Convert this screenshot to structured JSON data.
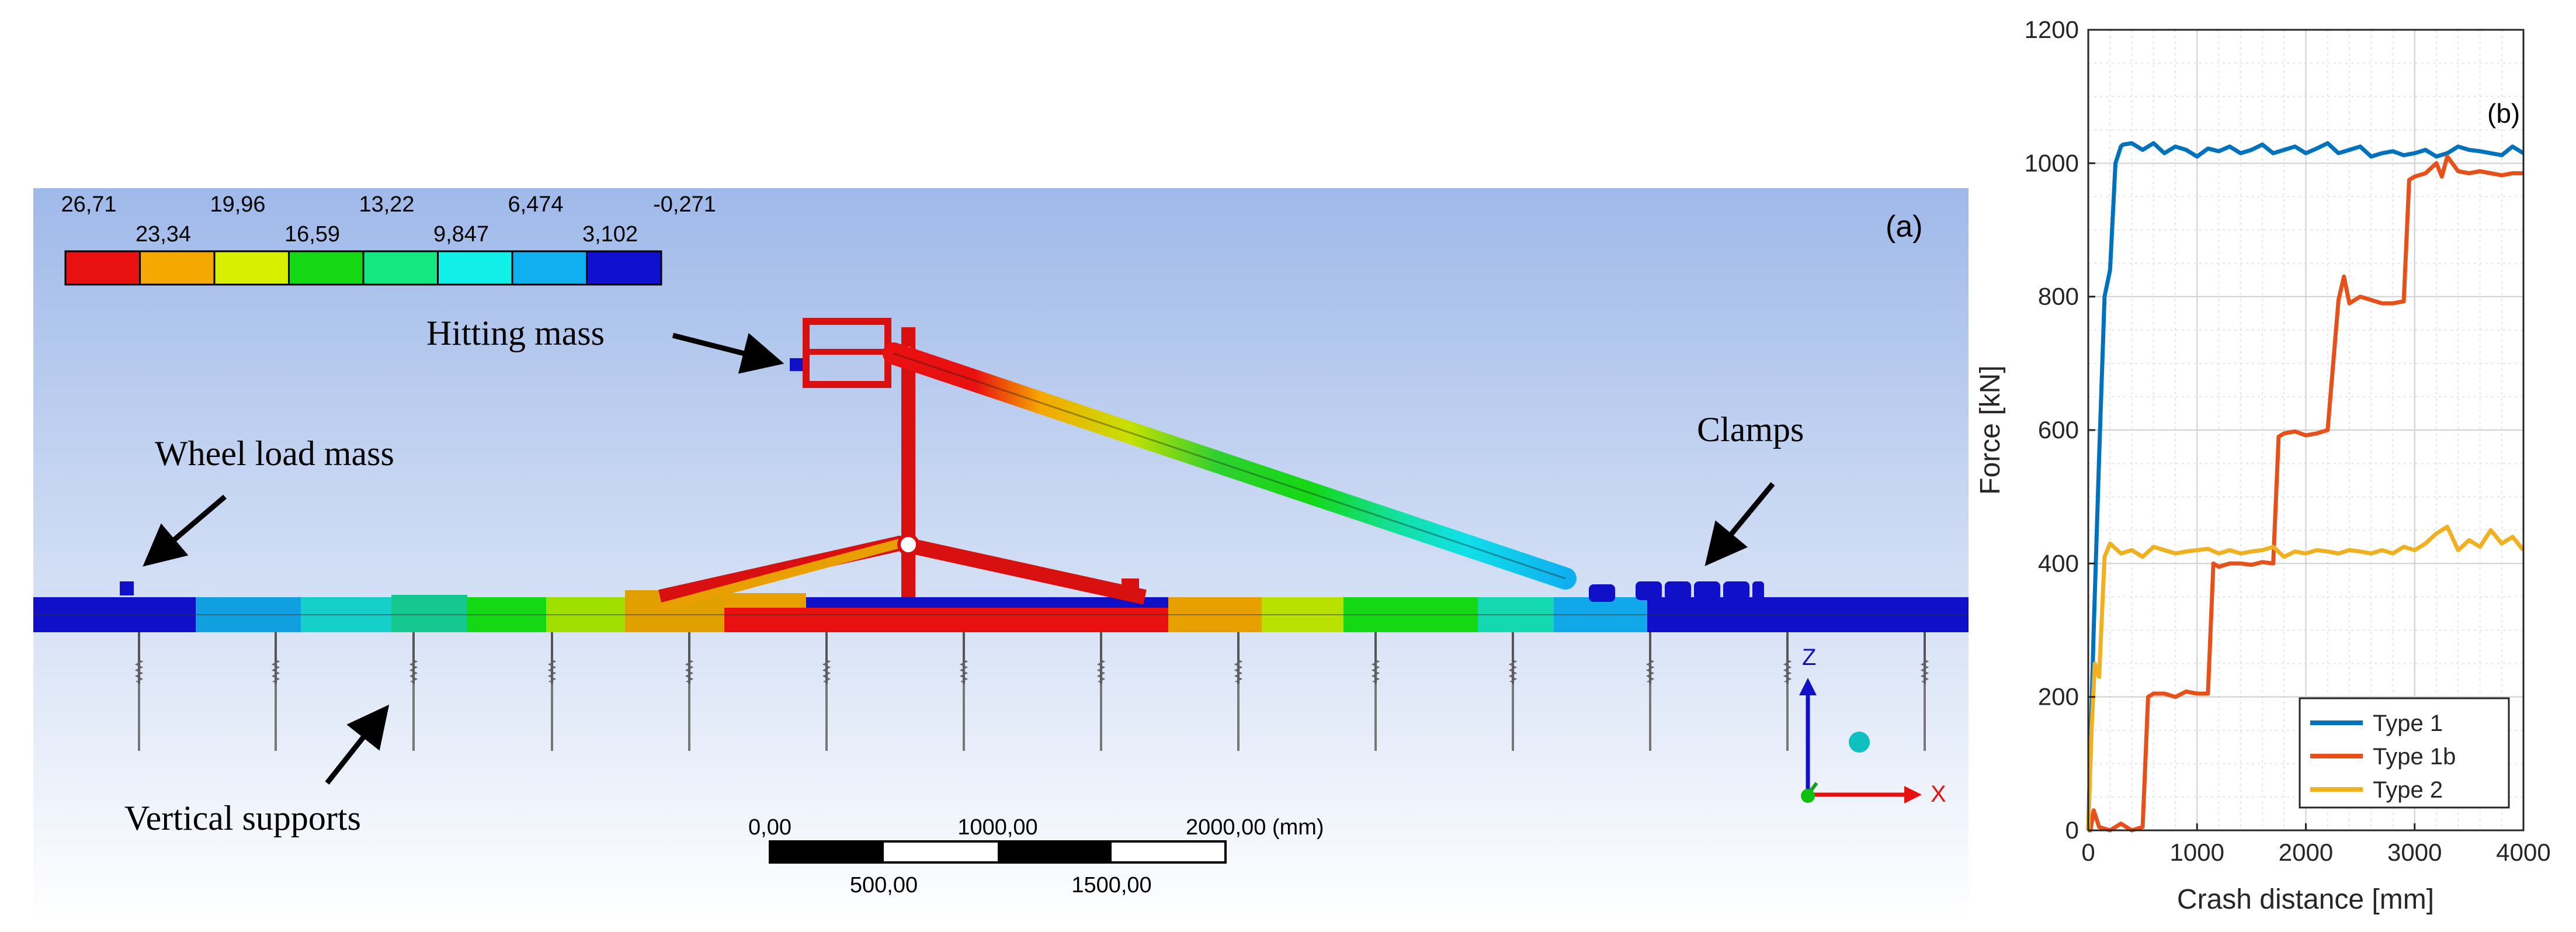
{
  "panel_a": {
    "panel_label": "(a)",
    "legend_values_top": [
      "26,71",
      "19,96",
      "13,22",
      "6,474",
      "-0,271"
    ],
    "legend_values_bottom": [
      "23,34",
      "16,59",
      "9,847",
      "3,102"
    ],
    "legend_colors": [
      "#e81010",
      "#f5a800",
      "#d8f000",
      "#14d814",
      "#14e880",
      "#10f0e8",
      "#10b0f0",
      "#1010d0"
    ],
    "annotations": {
      "hitting_mass": "Hitting mass",
      "wheel_load_mass": "Wheel load mass",
      "clamps": "Clamps",
      "vertical_supports": "Vertical supports"
    },
    "scale_bar": {
      "top_labels": [
        "0,00",
        "1000,00",
        "2000,00 (mm)"
      ],
      "bottom_labels": [
        "500,00",
        "1500,00"
      ]
    },
    "triad": {
      "z_label": "Z",
      "x_label": "X"
    }
  },
  "chart_data": {
    "type": "line",
    "panel_label": "(b)",
    "xlabel": "Crash distance [mm]",
    "ylabel": "Force [kN]",
    "xlim": [
      0,
      4000
    ],
    "ylim": [
      0,
      1200
    ],
    "xticks": [
      0,
      1000,
      2000,
      3000,
      4000
    ],
    "yticks": [
      0,
      200,
      400,
      600,
      800,
      1000,
      1200
    ],
    "grid": true,
    "legend_position": "bottom-right",
    "series": [
      {
        "name": "Type 1",
        "color": "#0072bd",
        "x": [
          0,
          50,
          100,
          150,
          200,
          250,
          300,
          320,
          400,
          500,
          600,
          700,
          800,
          900,
          1000,
          1100,
          1200,
          1300,
          1400,
          1500,
          1600,
          1700,
          1800,
          1900,
          2000,
          2100,
          2200,
          2300,
          2400,
          2500,
          2600,
          2700,
          2800,
          2900,
          3000,
          3100,
          3200,
          3300,
          3400,
          3500,
          3600,
          3700,
          3800,
          3900,
          4000
        ],
        "y": [
          0,
          300,
          560,
          800,
          840,
          1000,
          1025,
          1028,
          1030,
          1020,
          1030,
          1015,
          1025,
          1020,
          1010,
          1022,
          1018,
          1025,
          1015,
          1020,
          1028,
          1015,
          1020,
          1025,
          1015,
          1022,
          1030,
          1015,
          1020,
          1025,
          1010,
          1015,
          1018,
          1012,
          1015,
          1020,
          1010,
          1015,
          1025,
          1020,
          1018,
          1015,
          1012,
          1025,
          1015
        ]
      },
      {
        "name": "Type 1b",
        "color": "#e8501a",
        "x": [
          0,
          20,
          50,
          100,
          200,
          300,
          400,
          500,
          550,
          600,
          700,
          800,
          900,
          1000,
          1100,
          1150,
          1200,
          1300,
          1400,
          1500,
          1600,
          1700,
          1750,
          1800,
          1900,
          2000,
          2100,
          2200,
          2300,
          2350,
          2400,
          2500,
          2600,
          2700,
          2800,
          2900,
          2950,
          3000,
          3100,
          3200,
          3250,
          3300,
          3400,
          3500,
          3600,
          3700,
          3800,
          3900,
          4000
        ],
        "y": [
          0,
          0,
          30,
          5,
          0,
          10,
          0,
          5,
          200,
          205,
          205,
          200,
          208,
          205,
          205,
          400,
          395,
          400,
          400,
          398,
          402,
          400,
          590,
          595,
          598,
          592,
          595,
          600,
          795,
          830,
          790,
          800,
          795,
          790,
          790,
          793,
          975,
          980,
          985,
          1000,
          980,
          1010,
          988,
          985,
          988,
          985,
          982,
          985,
          985
        ]
      },
      {
        "name": "Type 2",
        "color": "#f0b020",
        "x": [
          0,
          30,
          60,
          100,
          150,
          200,
          300,
          400,
          500,
          600,
          700,
          800,
          900,
          1000,
          1100,
          1200,
          1300,
          1400,
          1500,
          1600,
          1700,
          1800,
          1900,
          2000,
          2100,
          2200,
          2300,
          2400,
          2500,
          2600,
          2700,
          2800,
          2900,
          3000,
          3100,
          3200,
          3300,
          3400,
          3500,
          3600,
          3700,
          3800,
          3900,
          4000
        ],
        "y": [
          0,
          150,
          250,
          230,
          410,
          430,
          415,
          420,
          410,
          425,
          420,
          415,
          418,
          420,
          422,
          415,
          420,
          415,
          418,
          420,
          425,
          410,
          418,
          415,
          420,
          418,
          415,
          420,
          418,
          415,
          420,
          415,
          425,
          420,
          430,
          445,
          455,
          420,
          435,
          425,
          450,
          430,
          440,
          420
        ]
      }
    ]
  }
}
